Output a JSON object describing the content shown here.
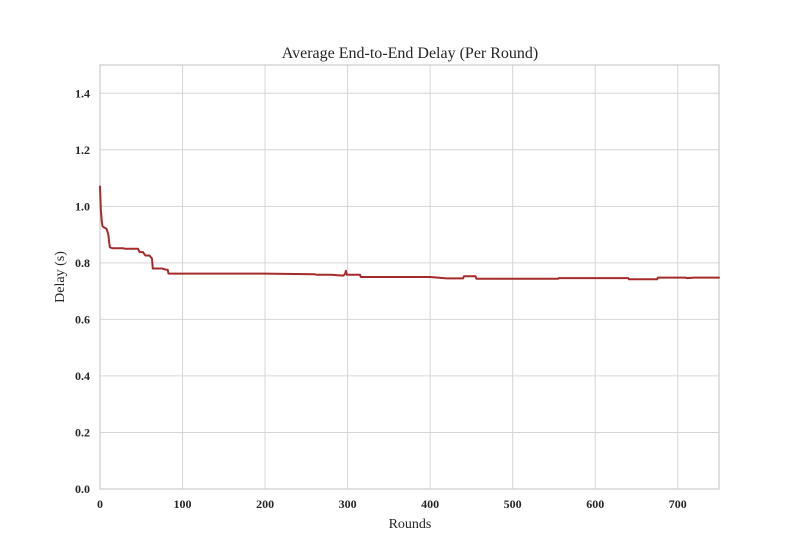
{
  "chart_data": {
    "type": "line",
    "title": "Average End-to-End Delay (Per Round)",
    "xlabel": "Rounds",
    "ylabel": "Delay (s)",
    "xlim": [
      0,
      750
    ],
    "ylim": [
      0,
      1.5
    ],
    "xticks": [
      0,
      100,
      200,
      300,
      400,
      500,
      600,
      700
    ],
    "xtick_labels": [
      "0",
      "100",
      "200",
      "300",
      "400",
      "500",
      "600",
      "700"
    ],
    "yticks": [
      0.0,
      0.2,
      0.4,
      0.6,
      0.8,
      1.0,
      1.2,
      1.4
    ],
    "ytick_labels": [
      "0.0",
      "0.2",
      "0.4",
      "0.6",
      "0.8",
      "1.0",
      "1.2",
      "1.4"
    ],
    "grid": true,
    "series": [
      {
        "color": "#a52a2a",
        "x": [
          0,
          1,
          2,
          3,
          5,
          8,
          10,
          11,
          12,
          15,
          20,
          28,
          30,
          40,
          46,
          48,
          52,
          55,
          60,
          63,
          64,
          70,
          75,
          80,
          82,
          83,
          100,
          200,
          260,
          262,
          280,
          295,
          297,
          298,
          299,
          300,
          315,
          316,
          400,
          420,
          440,
          441,
          455,
          456,
          500,
          555,
          556,
          600,
          640,
          641,
          675,
          676,
          700,
          710,
          711,
          720,
          750
        ],
        "y": [
          1.07,
          0.99,
          0.95,
          0.93,
          0.925,
          0.92,
          0.9,
          0.875,
          0.855,
          0.852,
          0.852,
          0.852,
          0.85,
          0.85,
          0.85,
          0.838,
          0.838,
          0.826,
          0.826,
          0.815,
          0.78,
          0.78,
          0.78,
          0.776,
          0.776,
          0.762,
          0.762,
          0.762,
          0.76,
          0.758,
          0.758,
          0.755,
          0.762,
          0.772,
          0.758,
          0.758,
          0.758,
          0.75,
          0.75,
          0.745,
          0.745,
          0.753,
          0.753,
          0.744,
          0.744,
          0.744,
          0.746,
          0.746,
          0.746,
          0.742,
          0.742,
          0.748,
          0.748,
          0.748,
          0.746,
          0.748,
          0.748
        ]
      }
    ]
  }
}
